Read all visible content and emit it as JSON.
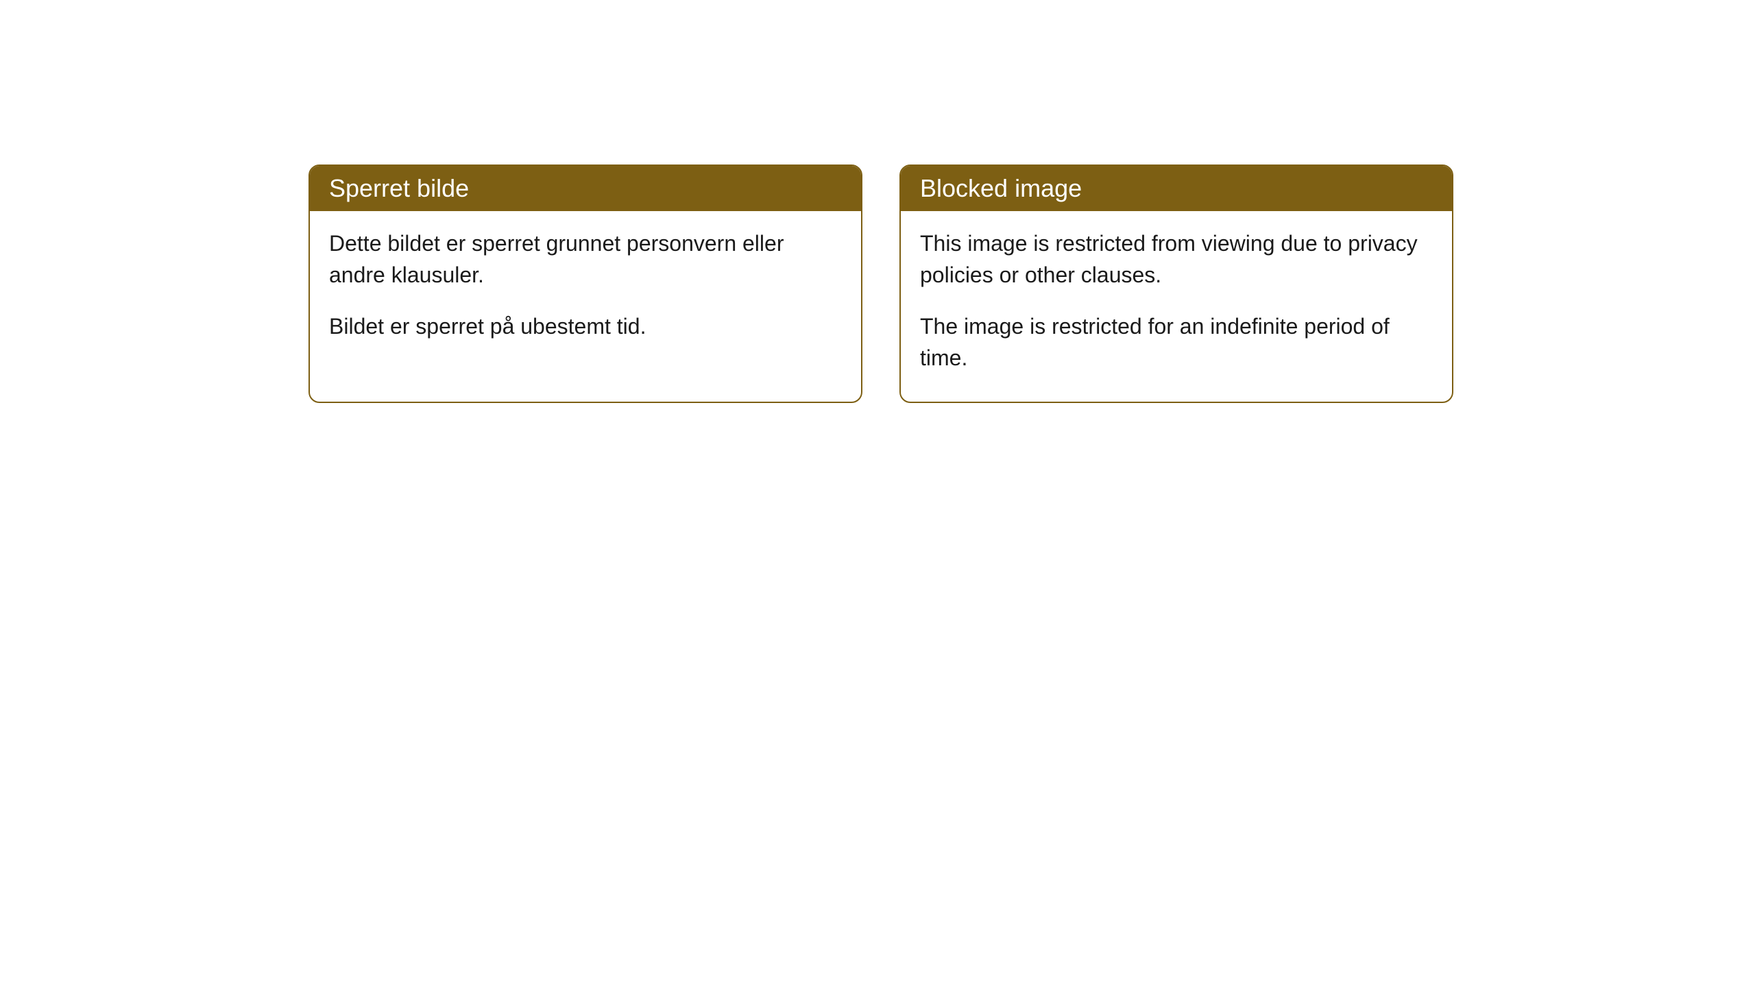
{
  "cards": [
    {
      "title": "Sperret bilde",
      "paragraph1": "Dette bildet er sperret grunnet personvern eller andre klausuler.",
      "paragraph2": "Bildet er sperret på ubestemt tid."
    },
    {
      "title": "Blocked image",
      "paragraph1": "This image is restricted from viewing due to privacy policies or other clauses.",
      "paragraph2": "The image is restricted for an indefinite period of time."
    }
  ],
  "styling": {
    "header_bg_color": "#7d5f13",
    "header_text_color": "#ffffff",
    "border_color": "#7d5f13",
    "body_bg_color": "#ffffff",
    "body_text_color": "#1a1a1a",
    "border_radius": 16,
    "title_fontsize": 36,
    "body_fontsize": 32
  }
}
